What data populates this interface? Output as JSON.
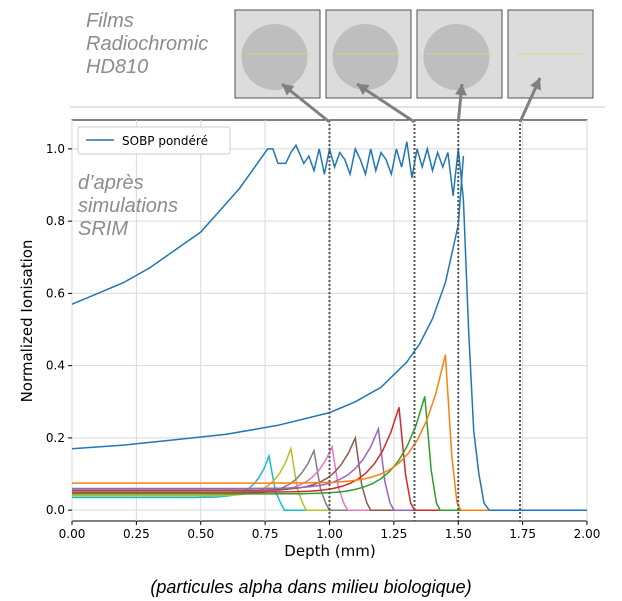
{
  "header": {
    "films_label_lines": [
      "Films",
      "Radiochromic",
      "HD810"
    ]
  },
  "annotation": {
    "lines": [
      "d’après",
      "simulations",
      "SRIM"
    ]
  },
  "caption": "(particules alpha dans milieu biologique)",
  "film_images": [
    {
      "name": "film-1",
      "spot": true,
      "target_depth_mm": 1.0
    },
    {
      "name": "film-2",
      "spot": true,
      "target_depth_mm": 1.33
    },
    {
      "name": "film-3",
      "spot": true,
      "target_depth_mm": 1.5
    },
    {
      "name": "film-4",
      "spot": false,
      "target_depth_mm": 1.74
    }
  ],
  "colors": {
    "sobp": "#1f77b4",
    "bragg_series": [
      "#17becf",
      "#bcbd22",
      "#7f7f7f",
      "#e377c2",
      "#8c564b",
      "#9467bd",
      "#d62728",
      "#2ca02c",
      "#ff7f0e"
    ],
    "film_arrow": "#808080",
    "annotation_text": "#8c8c8c",
    "film_background": "#dcdcdc",
    "film_spot": "#b4b4b4"
  },
  "chart_data": {
    "type": "line",
    "xlabel": "Depth (mm)",
    "ylabel": "Normalized Ionisation",
    "xlim": [
      0.0,
      2.0
    ],
    "ylim": [
      -0.03,
      1.08
    ],
    "xticks": [
      0.0,
      0.25,
      0.5,
      0.75,
      1.0,
      1.25,
      1.5,
      1.75,
      2.0
    ],
    "xtick_labels": [
      "0.00",
      "0.25",
      "0.50",
      "0.75",
      "1.00",
      "1.25",
      "1.50",
      "1.75",
      "2.00"
    ],
    "yticks": [
      0.0,
      0.2,
      0.4,
      0.6,
      0.8,
      1.0
    ],
    "ytick_labels": [
      "0.0",
      "0.2",
      "0.4",
      "0.6",
      "0.8",
      "1.0"
    ],
    "grid": true,
    "legend": {
      "location": "top-left",
      "entries": [
        "SOBP pondéré"
      ]
    },
    "dotted_verticals_mm": [
      1.0,
      1.33,
      1.5,
      1.74
    ],
    "sobp": {
      "name": "SOBP pondéré",
      "x": [
        0.0,
        0.1,
        0.2,
        0.3,
        0.4,
        0.5,
        0.6,
        0.65,
        0.7,
        0.73,
        0.76,
        0.78,
        0.8,
        0.83,
        0.85,
        0.87,
        0.9,
        0.92,
        0.94,
        0.96,
        0.98,
        1.0,
        1.02,
        1.04,
        1.06,
        1.08,
        1.1,
        1.12,
        1.14,
        1.16,
        1.18,
        1.2,
        1.22,
        1.24,
        1.26,
        1.28,
        1.3,
        1.32,
        1.34,
        1.36,
        1.38,
        1.4,
        1.42,
        1.44,
        1.46,
        1.48,
        1.5,
        1.52,
        1.54,
        1.56,
        1.58,
        1.6,
        1.62,
        2.0
      ],
      "y": [
        0.57,
        0.6,
        0.63,
        0.67,
        0.72,
        0.77,
        0.85,
        0.89,
        0.94,
        0.97,
        1.0,
        1.0,
        0.96,
        0.96,
        0.99,
        1.01,
        0.96,
        0.98,
        0.94,
        1.0,
        0.93,
        1.0,
        0.95,
        0.99,
        0.97,
        0.93,
        1.0,
        0.97,
        0.93,
        1.0,
        0.94,
        0.99,
        0.97,
        0.93,
        1.0,
        0.95,
        1.02,
        0.92,
        1.0,
        0.95,
        1.0,
        0.94,
        0.99,
        0.95,
        0.99,
        0.87,
        1.0,
        0.86,
        0.5,
        0.22,
        0.1,
        0.02,
        0.0,
        0.0
      ]
    },
    "entrance_curve": {
      "x": [
        0.0,
        0.2,
        0.4,
        0.6,
        0.8,
        1.0,
        1.1,
        1.2,
        1.3,
        1.35,
        1.4,
        1.45,
        1.5,
        1.52
      ],
      "y": [
        0.17,
        0.18,
        0.195,
        0.21,
        0.235,
        0.27,
        0.3,
        0.34,
        0.41,
        0.46,
        0.53,
        0.63,
        0.79,
        0.98
      ]
    },
    "bragg_peaks": [
      {
        "peak_x": 0.765,
        "peak_y": 0.15,
        "entrance_y": 0.035
      },
      {
        "peak_x": 0.85,
        "peak_y": 0.17,
        "entrance_y": 0.04
      },
      {
        "peak_x": 0.94,
        "peak_y": 0.165,
        "entrance_y": 0.045
      },
      {
        "peak_x": 1.01,
        "peak_y": 0.175,
        "entrance_y": 0.05
      },
      {
        "peak_x": 1.1,
        "peak_y": 0.2,
        "entrance_y": 0.055
      },
      {
        "peak_x": 1.19,
        "peak_y": 0.225,
        "entrance_y": 0.06
      },
      {
        "peak_x": 1.27,
        "peak_y": 0.285,
        "entrance_y": 0.05
      },
      {
        "peak_x": 1.37,
        "peak_y": 0.315,
        "entrance_y": 0.045
      },
      {
        "peak_x": 1.45,
        "peak_y": 0.43,
        "entrance_y": 0.075
      }
    ]
  }
}
